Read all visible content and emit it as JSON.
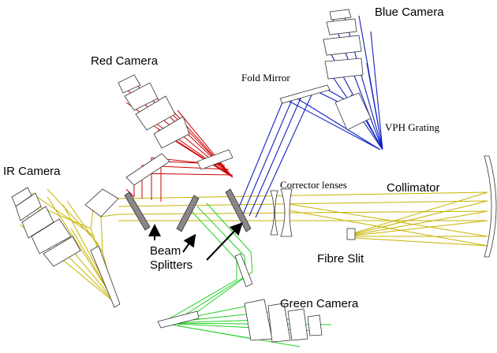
{
  "labels": {
    "blue_camera": "Blue Camera",
    "red_camera": "Red Camera",
    "fold_mirror": "Fold Mirror",
    "vph_grating": "VPH Grating",
    "ir_camera": "IR Camera",
    "corrector_lenses": "Corrector lenses",
    "collimator": "Collimator",
    "beam_splitters": [
      "Beam",
      "Splitters"
    ],
    "fibre_slit": "Fibre Slit",
    "green_camera": "Green Camera"
  }
}
